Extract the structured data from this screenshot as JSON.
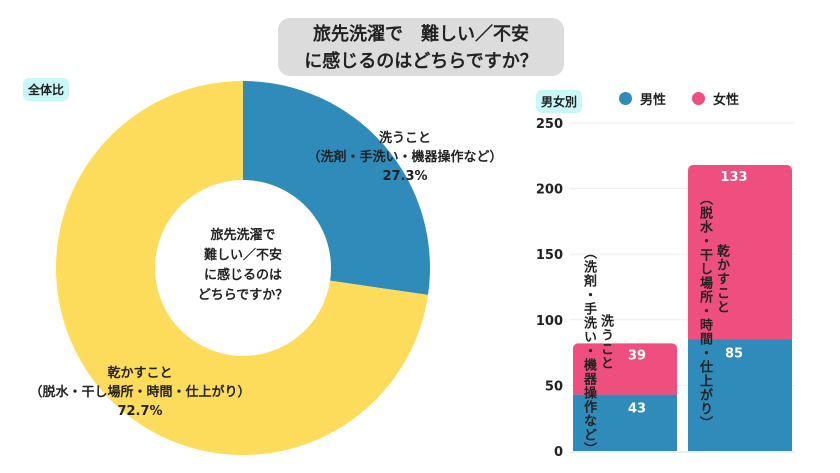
{
  "title_line1": "旅先洗濯で　難しい／不安",
  "title_line2": "に感じるのはどちらですか？",
  "colors": {
    "male": "#2e8bba",
    "female": "#ee4f7f",
    "wash": "#2e8bba",
    "dry": "#fddc5c"
  },
  "chart_data": [
    {
      "type": "pie",
      "badge": "全体比",
      "center_text": [
        "旅先洗濯で",
        "難しい／不安",
        "に感じるのは",
        "どちらですか？"
      ],
      "slices": [
        {
          "name": "洗うこと",
          "sub": "（洗剤・手洗い・機器操作など）",
          "value": 27.3,
          "label": "27.3%"
        },
        {
          "name": "乾かすこと",
          "sub": "（脱水・干し場所・時間・仕上がり）",
          "value": 72.7,
          "label": "72.7%"
        }
      ]
    },
    {
      "type": "bar",
      "stacked": true,
      "badge": "男女別",
      "legend": [
        "男性",
        "女性"
      ],
      "categories": [
        {
          "name": "洗うこと",
          "sub": "（洗剤・手洗い・機器操作など）"
        },
        {
          "name": "乾かすこと",
          "sub": "（脱水・干し場所・時間・仕上がり）"
        }
      ],
      "series": [
        {
          "name": "男性",
          "values": [
            43,
            85
          ]
        },
        {
          "name": "女性",
          "values": [
            39,
            133
          ]
        }
      ],
      "ylim": [
        0,
        250
      ],
      "yticks": [
        "0",
        "50",
        "100",
        "150",
        "200",
        "250"
      ],
      "grid": true,
      "legend_placement": "top"
    }
  ]
}
